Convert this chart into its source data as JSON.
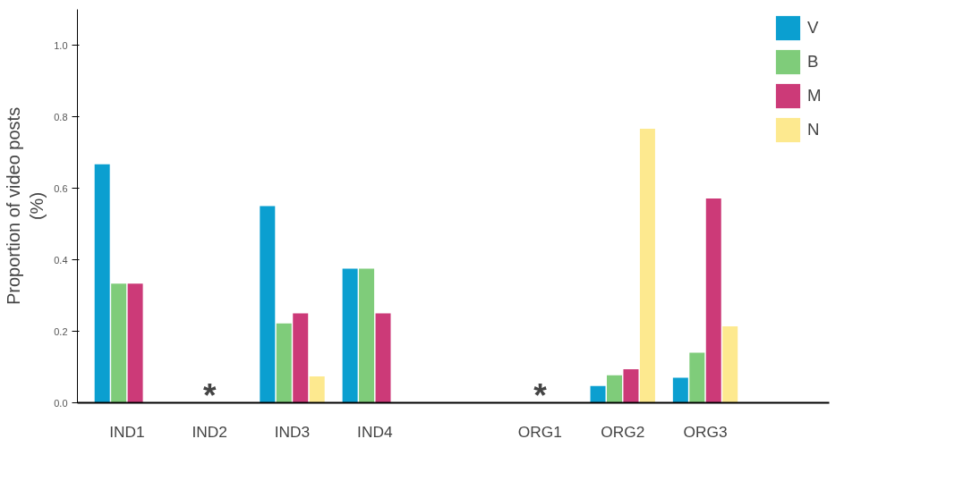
{
  "chart_data": {
    "type": "bar",
    "ylabel": "Proportion of video posts\n(%)",
    "categories": [
      "IND1",
      "IND2",
      "IND3",
      "IND4",
      null,
      "ORG1",
      "ORG2",
      "ORG3"
    ],
    "series": [
      {
        "name": "V",
        "color": "#0b9fd0",
        "values": [
          0.667,
          null,
          0.55,
          0.375,
          null,
          null,
          0.047,
          0.07
        ]
      },
      {
        "name": "B",
        "color": "#7fcc7a",
        "values": [
          0.333,
          null,
          0.222,
          0.375,
          null,
          null,
          0.077,
          0.14
        ]
      },
      {
        "name": "M",
        "color": "#cc3a78",
        "values": [
          0.333,
          null,
          0.25,
          0.25,
          null,
          null,
          0.094,
          0.571
        ]
      },
      {
        "name": "N",
        "color": "#fde98f",
        "values": [
          null,
          null,
          0.074,
          null,
          null,
          null,
          0.766,
          0.214
        ]
      }
    ],
    "ylim": [
      0,
      1.1
    ],
    "yticks": [
      {
        "value": 0,
        "label": "0.0"
      },
      {
        "value": 0.2,
        "label": "0.2"
      },
      {
        "value": 0.4,
        "label": "0.4"
      },
      {
        "value": 0.6,
        "label": "0.6"
      },
      {
        "value": 0.8,
        "label": "0.8"
      },
      {
        "value": 1.0,
        "label": "1.0"
      }
    ],
    "annotations": [
      "*",
      "*"
    ],
    "grid": false,
    "legend": "top right"
  }
}
